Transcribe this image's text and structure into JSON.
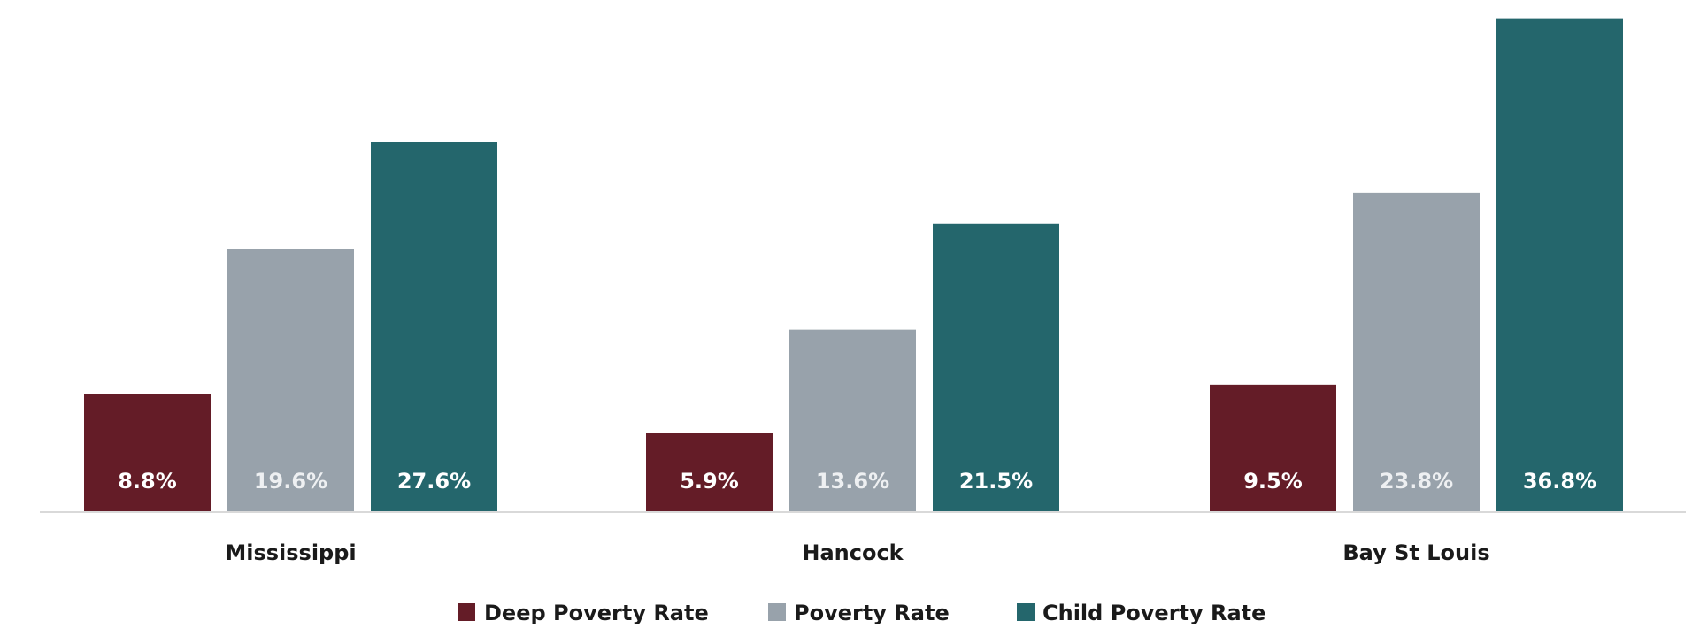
{
  "chart_data": {
    "type": "bar",
    "categories": [
      "Mississippi",
      "Hancock",
      "Bay St Louis"
    ],
    "series": [
      {
        "name": "Deep Poverty Rate",
        "values": [
          8.8,
          5.9,
          9.5
        ],
        "labels": [
          "8.8%",
          "5.9%",
          "9.5%"
        ],
        "color": "#641c27"
      },
      {
        "name": "Poverty Rate",
        "values": [
          19.6,
          13.6,
          23.8
        ],
        "labels": [
          "19.6%",
          "13.6%",
          "23.8%"
        ],
        "color": "#98a2ab"
      },
      {
        "name": "Child Poverty Rate",
        "values": [
          27.6,
          21.5,
          36.8
        ],
        "labels": [
          "27.6%",
          "21.5%",
          "36.8%"
        ],
        "color": "#24666c"
      }
    ],
    "ylim": [
      0,
      37.5
    ],
    "grid": false,
    "legend_position": "bottom",
    "axis_color": "#d9d9d9"
  }
}
